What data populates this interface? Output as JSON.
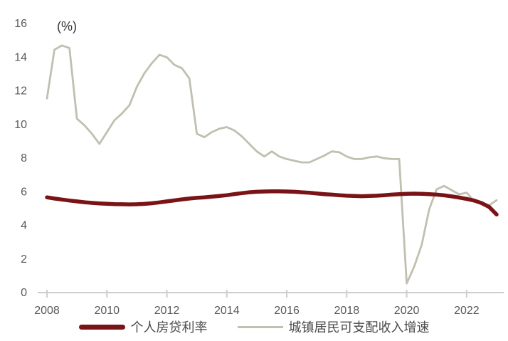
{
  "chart": {
    "unit_label": "(%)"
  },
  "chart_data": {
    "type": "line",
    "title": "",
    "xlabel": "",
    "ylabel": "(%)",
    "grid": false,
    "legend_position": "bottom",
    "xlim": [
      2008,
      2023
    ],
    "ylim": [
      0,
      16
    ],
    "y_ticks": [
      0,
      2,
      4,
      6,
      8,
      10,
      12,
      14,
      16
    ],
    "x_tick_years": [
      2008,
      2010,
      2012,
      2014,
      2016,
      2018,
      2020,
      2022
    ],
    "axis_color": "#cfcdcd",
    "label_color": "#595959",
    "x": [
      2008,
      2008.25,
      2008.5,
      2008.75,
      2009,
      2009.25,
      2009.5,
      2009.75,
      2010,
      2010.25,
      2010.5,
      2010.75,
      2011,
      2011.25,
      2011.5,
      2011.75,
      2012,
      2012.25,
      2012.5,
      2012.75,
      2013,
      2013.25,
      2013.5,
      2013.75,
      2014,
      2014.25,
      2014.5,
      2014.75,
      2015,
      2015.25,
      2015.5,
      2015.75,
      2016,
      2016.25,
      2016.5,
      2016.75,
      2017,
      2017.25,
      2017.5,
      2017.75,
      2018,
      2018.25,
      2018.5,
      2018.75,
      2019,
      2019.25,
      2019.5,
      2019.75,
      2020,
      2020.25,
      2020.5,
      2020.75,
      2021,
      2021.25,
      2021.5,
      2021.75,
      2022,
      2022.25,
      2022.5,
      2022.75,
      2023
    ],
    "series": [
      {
        "name": "个人房贷利率",
        "color": "#7a1315",
        "stroke_width": 5.5,
        "values": [
          5.62,
          5.55,
          5.49,
          5.43,
          5.38,
          5.33,
          5.29,
          5.26,
          5.24,
          5.22,
          5.21,
          5.2,
          5.21,
          5.23,
          5.27,
          5.32,
          5.38,
          5.44,
          5.5,
          5.55,
          5.59,
          5.62,
          5.66,
          5.7,
          5.75,
          5.81,
          5.87,
          5.92,
          5.95,
          5.97,
          5.98,
          5.98,
          5.97,
          5.95,
          5.92,
          5.89,
          5.85,
          5.81,
          5.78,
          5.75,
          5.72,
          5.7,
          5.69,
          5.7,
          5.72,
          5.75,
          5.78,
          5.81,
          5.83,
          5.84,
          5.83,
          5.81,
          5.78,
          5.74,
          5.68,
          5.61,
          5.53,
          5.43,
          5.28,
          5.05,
          4.6
        ]
      },
      {
        "name": "城镇居民可支配收入增速",
        "color": "#c1bfb0",
        "stroke_width": 2.8,
        "values": [
          11.5,
          14.4,
          14.65,
          14.5,
          10.3,
          9.9,
          9.4,
          8.8,
          9.5,
          10.2,
          10.6,
          11.1,
          12.2,
          13.0,
          13.6,
          14.1,
          13.95,
          13.5,
          13.3,
          12.7,
          9.4,
          9.2,
          9.5,
          9.7,
          9.8,
          9.6,
          9.25,
          8.8,
          8.35,
          8.05,
          8.35,
          8.05,
          7.9,
          7.8,
          7.7,
          7.7,
          7.9,
          8.1,
          8.35,
          8.3,
          8.05,
          7.9,
          7.9,
          8.0,
          8.05,
          7.95,
          7.9,
          7.9,
          0.5,
          1.5,
          2.8,
          4.9,
          6.1,
          6.3,
          6.05,
          5.8,
          5.9,
          5.4,
          5.3,
          5.15,
          5.45
        ]
      }
    ]
  }
}
